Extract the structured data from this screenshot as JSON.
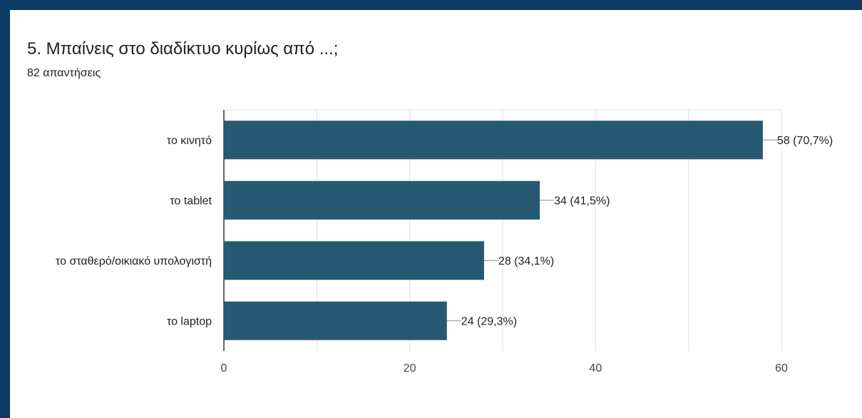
{
  "question": {
    "title": "5. Μπαίνεις στο διαδίκτυο κυρίως από ...;",
    "response_count": "82 απαντήσεις"
  },
  "colors": {
    "background": "#0b3a66",
    "bar": "#255a72",
    "grid": "#e0e0e0",
    "axis": "#000000",
    "text": "#202124"
  },
  "chart_data": {
    "type": "bar",
    "orientation": "horizontal",
    "categories": [
      "το κινητό",
      "το tablet",
      "το σταθερό/οικιακό υπολογιστή",
      "το laptop"
    ],
    "values": [
      58,
      34,
      28,
      24
    ],
    "data_labels": [
      "58 (70,7%)",
      "34 (41,5%)",
      "28 (34,1%)",
      "24 (29,3%)"
    ],
    "xlim": [
      0,
      60
    ],
    "x_ticks": [
      0,
      20,
      40,
      60
    ],
    "grid": true
  }
}
